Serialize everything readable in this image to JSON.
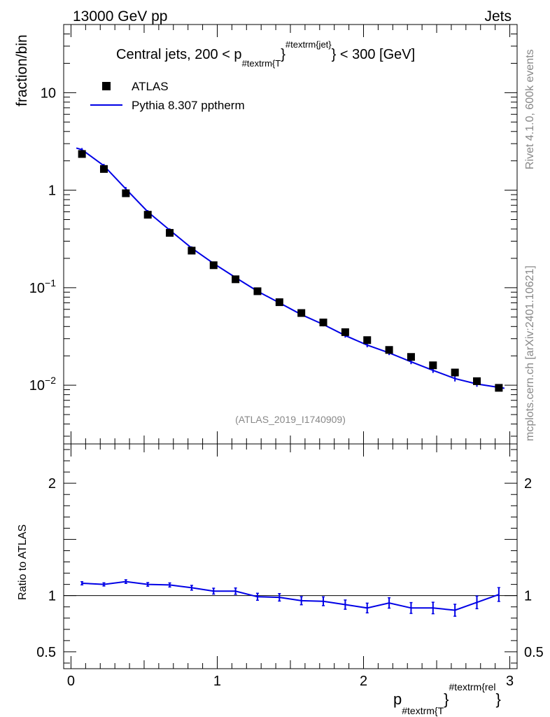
{
  "header": {
    "left": "13000 GeV pp",
    "right": "Jets"
  },
  "side_text": {
    "rivet": "Rivet 4.1.0,  600k events",
    "mcplots": "mcplots.cern.ch [arXiv:2401.10621]"
  },
  "chart_data": [
    {
      "type": "scatter",
      "panel": "main",
      "title": {
        "prefix": "Central jets, 200 < p",
        "sub": "#textrm{T",
        "brace": "}",
        "sup": "#textrm{jet}",
        "suffix": "} < 300 [GeV]"
      },
      "ylabel": "fraction/bin",
      "yscale": "log",
      "ylim": [
        0.0025,
        50
      ],
      "xlim": [
        -0.05,
        3.05
      ],
      "y_ticks": [
        {
          "value": 10,
          "label": "10",
          "kind": "plain"
        },
        {
          "value": 1,
          "label": "1",
          "kind": "plain"
        },
        {
          "value": 0.1,
          "label": "10",
          "exp": "−1",
          "kind": "exp"
        },
        {
          "value": 0.01,
          "label": "10",
          "exp": "−2",
          "kind": "exp"
        }
      ],
      "watermark": "(ATLAS_2019_I1740909)",
      "legend": {
        "placement": "top-left",
        "data_label": "ATLAS",
        "mc_label": "Pythia 8.307 pptherm"
      },
      "x": [
        0.075,
        0.225,
        0.375,
        0.525,
        0.675,
        0.825,
        0.975,
        1.125,
        1.275,
        1.425,
        1.575,
        1.725,
        1.875,
        2.025,
        2.175,
        2.325,
        2.475,
        2.625,
        2.775,
        2.925
      ],
      "series": [
        {
          "name": "ATLAS",
          "style": "markers",
          "color": "#000000",
          "values": [
            2.35,
            1.65,
            0.93,
            0.56,
            0.365,
            0.24,
            0.17,
            0.122,
            0.092,
            0.071,
            0.055,
            0.044,
            0.035,
            0.029,
            0.023,
            0.0195,
            0.016,
            0.0135,
            0.011,
            0.0094
          ]
        },
        {
          "name": "Pythia 8.307 pptherm",
          "style": "line",
          "color": "#0000e6",
          "values": [
            2.6,
            1.78,
            1.03,
            0.6,
            0.39,
            0.255,
            0.177,
            0.127,
            0.092,
            0.07,
            0.053,
            0.042,
            0.0323,
            0.0258,
            0.0215,
            0.0174,
            0.0142,
            0.0117,
            0.0103,
            0.0095
          ],
          "errors": [
            0.06,
            0.05,
            0.03,
            0.015,
            0.01,
            0.006,
            0.004,
            0.003,
            0.0022,
            0.0018,
            0.0015,
            0.0012,
            0.001,
            0.0009,
            0.0008,
            0.0007,
            0.0006,
            0.0006,
            0.0005,
            0.0005
          ]
        }
      ]
    },
    {
      "type": "line",
      "panel": "ratio",
      "ylabel": "Ratio to ATLAS",
      "ylim": [
        0.35,
        2.35
      ],
      "xlim": [
        -0.05,
        3.05
      ],
      "xlabel": {
        "main": "p",
        "sub": "#textrm{T",
        "brace": "}",
        "sup": "#textrm{rel",
        "end": "}"
      },
      "x_ticks": [
        {
          "value": 0,
          "label": "0"
        },
        {
          "value": 1,
          "label": "1"
        },
        {
          "value": 2,
          "label": "2"
        },
        {
          "value": 3,
          "label": "3"
        }
      ],
      "y_ticks": [
        {
          "value": 2,
          "label": "2"
        },
        {
          "value": 1,
          "label": "1"
        },
        {
          "value": 0.5,
          "label": "0.5"
        }
      ],
      "reference": 1,
      "x": [
        0.075,
        0.225,
        0.375,
        0.525,
        0.675,
        0.825,
        0.975,
        1.125,
        1.275,
        1.425,
        1.575,
        1.725,
        1.875,
        2.025,
        2.175,
        2.325,
        2.475,
        2.625,
        2.775,
        2.925
      ],
      "series": [
        {
          "name": "Pythia 8.307 pptherm",
          "color": "#0000e6",
          "values": [
            1.11,
            1.1,
            1.125,
            1.1,
            1.095,
            1.07,
            1.04,
            1.04,
            0.99,
            0.985,
            0.955,
            0.95,
            0.92,
            0.89,
            0.935,
            0.89,
            0.89,
            0.87,
            0.94,
            1.01
          ],
          "errors": [
            0.008,
            0.008,
            0.01,
            0.01,
            0.012,
            0.015,
            0.02,
            0.022,
            0.025,
            0.027,
            0.03,
            0.033,
            0.035,
            0.037,
            0.04,
            0.042,
            0.045,
            0.047,
            0.05,
            0.055
          ]
        }
      ]
    }
  ]
}
